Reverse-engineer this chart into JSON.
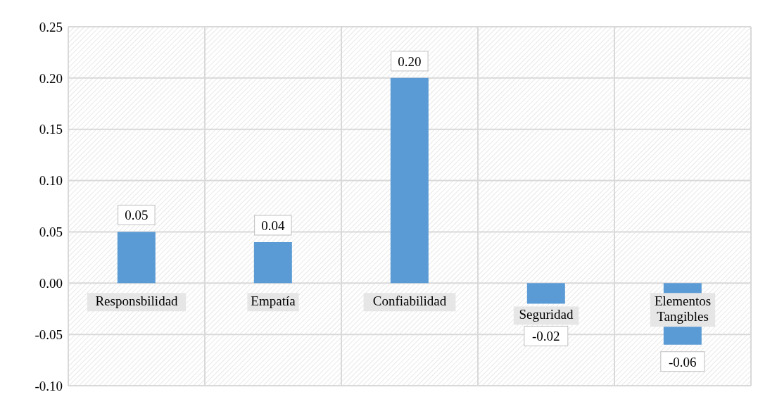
{
  "chart_data": {
    "type": "bar",
    "categories": [
      "Responsbilidad",
      "Empatía",
      "Confiabilidad",
      "Seguridad",
      "Elementos Tangibles"
    ],
    "values": [
      0.05,
      0.04,
      0.2,
      -0.02,
      -0.06
    ],
    "color": "#5b9bd5",
    "ylim": [
      -0.1,
      0.25
    ],
    "yticks": [
      {
        "value": -0.1,
        "label": "-0.10"
      },
      {
        "value": -0.05,
        "label": "-0.05"
      },
      {
        "value": 0,
        "label": "0.00"
      },
      {
        "value": 0.05,
        "label": "0.05"
      },
      {
        "value": 0.1,
        "label": "0.10"
      },
      {
        "value": 0.15,
        "label": "0.15"
      },
      {
        "value": 0.2,
        "label": "0.20"
      },
      {
        "value": 0.25,
        "label": "0.25"
      }
    ],
    "grid": true,
    "value_labels": [
      "0.05",
      "0.04",
      "0.20",
      "-0.02",
      "-0.06"
    ]
  }
}
